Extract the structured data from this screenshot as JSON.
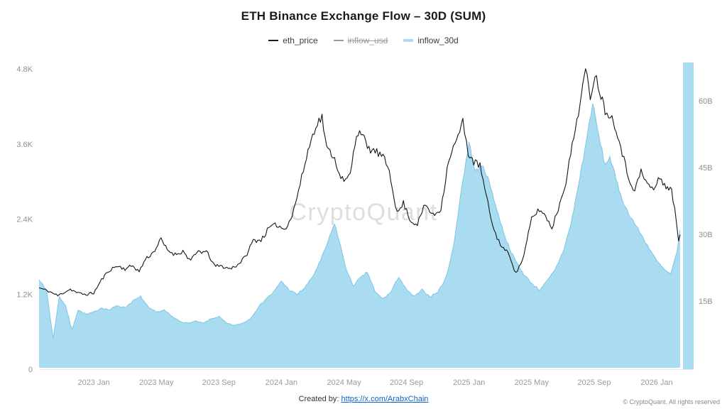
{
  "title": "ETH Binance Exchange Flow – 30D (SUM)",
  "watermark": "CryptoQuant",
  "legend": [
    {
      "label": "eth_price",
      "color": "#1a1a1a",
      "disabled": false
    },
    {
      "label": "inflow_usd",
      "color": "#9b9b9b",
      "disabled": true
    },
    {
      "label": "inflow_30d",
      "color": "#aadcf1",
      "disabled": false
    }
  ],
  "footer": {
    "created_by_label": "Created by:",
    "link": "https://x.com/ArabxChain",
    "copyright": "© CryptoQuant. All rights reserved"
  },
  "chart_data": {
    "type": "line",
    "title": "ETH Binance Exchange Flow – 30D (SUM)",
    "x_unit": "months (0 = mid-Sep 2022)",
    "x_range": [
      0,
      41
    ],
    "x_ticks": [
      {
        "x": 3.5,
        "label": "2023 Jan"
      },
      {
        "x": 7.5,
        "label": "2023 May"
      },
      {
        "x": 11.5,
        "label": "2023 Sep"
      },
      {
        "x": 15.5,
        "label": "2024 Jan"
      },
      {
        "x": 19.5,
        "label": "2024 May"
      },
      {
        "x": 23.5,
        "label": "2024 Sep"
      },
      {
        "x": 27.5,
        "label": "2025 Jan"
      },
      {
        "x": 31.5,
        "label": "2025 May"
      },
      {
        "x": 35.5,
        "label": "2025 Sep"
      },
      {
        "x": 39.5,
        "label": "2026 Jan"
      }
    ],
    "left_axis": {
      "series": "eth_price",
      "min": 0,
      "max": 4800,
      "ticks": [
        {
          "v": 0,
          "label": "0"
        },
        {
          "v": 1200,
          "label": "1.2K"
        },
        {
          "v": 2400,
          "label": "2.4K"
        },
        {
          "v": 3600,
          "label": "3.6K"
        },
        {
          "v": 4800,
          "label": "4.8K"
        }
      ]
    },
    "right_axis": {
      "series": "inflow_30d",
      "min": 0,
      "max": 67,
      "ticks": [
        {
          "v": 15,
          "label": "15B"
        },
        {
          "v": 30,
          "label": "30B"
        },
        {
          "v": 45,
          "label": "45B"
        },
        {
          "v": 60,
          "label": "60B"
        }
      ]
    },
    "series": [
      {
        "name": "eth_price",
        "axis": "left",
        "style": "line",
        "color": "#151515",
        "points": [
          [
            0,
            1300
          ],
          [
            0.6,
            1250
          ],
          [
            1.2,
            1175
          ],
          [
            1.6,
            1230
          ],
          [
            2.0,
            1280
          ],
          [
            2.5,
            1215
          ],
          [
            3.0,
            1195
          ],
          [
            3.5,
            1220
          ],
          [
            4.0,
            1430
          ],
          [
            4.5,
            1585
          ],
          [
            5.0,
            1650
          ],
          [
            5.5,
            1605
          ],
          [
            6.0,
            1655
          ],
          [
            6.4,
            1560
          ],
          [
            6.8,
            1760
          ],
          [
            7.3,
            1865
          ],
          [
            7.8,
            2075
          ],
          [
            8.2,
            1905
          ],
          [
            8.7,
            1835
          ],
          [
            9.2,
            1885
          ],
          [
            9.7,
            1735
          ],
          [
            10.2,
            1890
          ],
          [
            10.8,
            1855
          ],
          [
            11.2,
            1655
          ],
          [
            11.7,
            1645
          ],
          [
            12.2,
            1605
          ],
          [
            12.7,
            1670
          ],
          [
            13.2,
            1795
          ],
          [
            13.7,
            2060
          ],
          [
            14.2,
            2065
          ],
          [
            14.7,
            2255
          ],
          [
            15.2,
            2310
          ],
          [
            15.7,
            2235
          ],
          [
            16.2,
            2460
          ],
          [
            16.7,
            2960
          ],
          [
            17.2,
            3490
          ],
          [
            17.7,
            3905
          ],
          [
            18.1,
            4030
          ],
          [
            18.4,
            3520
          ],
          [
            18.8,
            3425
          ],
          [
            19.2,
            3145
          ],
          [
            19.5,
            2985
          ],
          [
            19.9,
            3110
          ],
          [
            20.3,
            3760
          ],
          [
            20.6,
            3815
          ],
          [
            21.0,
            3525
          ],
          [
            21.5,
            3485
          ],
          [
            22.0,
            3385
          ],
          [
            22.4,
            3185
          ],
          [
            22.9,
            2485
          ],
          [
            23.3,
            2655
          ],
          [
            23.8,
            2355
          ],
          [
            24.2,
            2325
          ],
          [
            24.7,
            2635
          ],
          [
            25.2,
            2455
          ],
          [
            25.7,
            2560
          ],
          [
            26.2,
            3360
          ],
          [
            26.7,
            3655
          ],
          [
            27.1,
            3950
          ],
          [
            27.45,
            3460
          ],
          [
            27.8,
            3310
          ],
          [
            28.2,
            3255
          ],
          [
            28.6,
            2760
          ],
          [
            29.1,
            2210
          ],
          [
            29.6,
            1955
          ],
          [
            30.1,
            1825
          ],
          [
            30.5,
            1525
          ],
          [
            31.0,
            1805
          ],
          [
            31.5,
            2410
          ],
          [
            32.0,
            2555
          ],
          [
            32.4,
            2445
          ],
          [
            32.8,
            2260
          ],
          [
            33.2,
            2560
          ],
          [
            33.7,
            3010
          ],
          [
            34.2,
            3710
          ],
          [
            34.6,
            4260
          ],
          [
            34.95,
            4780
          ],
          [
            35.25,
            4360
          ],
          [
            35.55,
            4720
          ],
          [
            35.85,
            4460
          ],
          [
            36.2,
            4140
          ],
          [
            36.55,
            4060
          ],
          [
            36.9,
            3860
          ],
          [
            37.3,
            3460
          ],
          [
            37.7,
            3060
          ],
          [
            38.1,
            2860
          ],
          [
            38.5,
            3160
          ],
          [
            38.9,
            2960
          ],
          [
            39.3,
            2870
          ],
          [
            39.7,
            3060
          ],
          [
            40.1,
            2920
          ],
          [
            40.45,
            2860
          ],
          [
            40.75,
            2380
          ],
          [
            40.9,
            2060
          ],
          [
            41.0,
            2150
          ]
        ]
      },
      {
        "name": "inflow_usd",
        "axis": "right",
        "style": "hidden",
        "color": "#9b9b9b",
        "disabled": true,
        "points": []
      },
      {
        "name": "inflow_30d",
        "axis": "right",
        "style": "area",
        "color": "#aadcf1",
        "stroke": "#7cc7e6",
        "points": [
          [
            0,
            20
          ],
          [
            0.5,
            17
          ],
          [
            0.9,
            6.5
          ],
          [
            1.3,
            16
          ],
          [
            1.7,
            14
          ],
          [
            2.1,
            8.5
          ],
          [
            2.5,
            13
          ],
          [
            3.0,
            12
          ],
          [
            3.5,
            12.5
          ],
          [
            4.0,
            13.5
          ],
          [
            4.5,
            13
          ],
          [
            5.0,
            14
          ],
          [
            5.5,
            13.5
          ],
          [
            6.0,
            15
          ],
          [
            6.5,
            16
          ],
          [
            7.0,
            13.5
          ],
          [
            7.5,
            12.5
          ],
          [
            8.0,
            13
          ],
          [
            8.5,
            11.5
          ],
          [
            9.0,
            10.5
          ],
          [
            9.5,
            10
          ],
          [
            10.0,
            10.5
          ],
          [
            10.5,
            10
          ],
          [
            11.0,
            11
          ],
          [
            11.5,
            11.5
          ],
          [
            12.0,
            10
          ],
          [
            12.5,
            9.5
          ],
          [
            13.0,
            10
          ],
          [
            13.5,
            11
          ],
          [
            14.0,
            13.5
          ],
          [
            14.5,
            15.5
          ],
          [
            15.0,
            17
          ],
          [
            15.5,
            19.5
          ],
          [
            16.0,
            17.5
          ],
          [
            16.5,
            16.5
          ],
          [
            17.0,
            18
          ],
          [
            17.5,
            20.5
          ],
          [
            18.0,
            24
          ],
          [
            18.5,
            28.5
          ],
          [
            18.9,
            32.5
          ],
          [
            19.3,
            27
          ],
          [
            19.7,
            21.5
          ],
          [
            20.1,
            18.5
          ],
          [
            20.5,
            20
          ],
          [
            21.0,
            21.5
          ],
          [
            21.5,
            17
          ],
          [
            22.0,
            15.5
          ],
          [
            22.5,
            17
          ],
          [
            23.0,
            20.5
          ],
          [
            23.5,
            17.5
          ],
          [
            24.0,
            16
          ],
          [
            24.5,
            17.5
          ],
          [
            25.0,
            16
          ],
          [
            25.5,
            17
          ],
          [
            26.0,
            20
          ],
          [
            26.5,
            27
          ],
          [
            27.0,
            40
          ],
          [
            27.5,
            50.5
          ],
          [
            27.9,
            44
          ],
          [
            28.4,
            45.5
          ],
          [
            28.9,
            40.5
          ],
          [
            29.4,
            34
          ],
          [
            29.9,
            28.5
          ],
          [
            30.4,
            24.5
          ],
          [
            31.0,
            21
          ],
          [
            31.5,
            19
          ],
          [
            32.0,
            17.5
          ],
          [
            32.5,
            19.5
          ],
          [
            33.0,
            22
          ],
          [
            33.5,
            26
          ],
          [
            34.0,
            32
          ],
          [
            34.5,
            41
          ],
          [
            35.0,
            51
          ],
          [
            35.4,
            59.5
          ],
          [
            35.8,
            52
          ],
          [
            36.2,
            45.5
          ],
          [
            36.5,
            47.5
          ],
          [
            37.0,
            41
          ],
          [
            37.5,
            36
          ],
          [
            38.0,
            33
          ],
          [
            38.5,
            30
          ],
          [
            39.0,
            27
          ],
          [
            39.5,
            24
          ],
          [
            40.0,
            22
          ],
          [
            40.4,
            21
          ],
          [
            40.8,
            26
          ],
          [
            41.0,
            31
          ]
        ]
      }
    ]
  }
}
